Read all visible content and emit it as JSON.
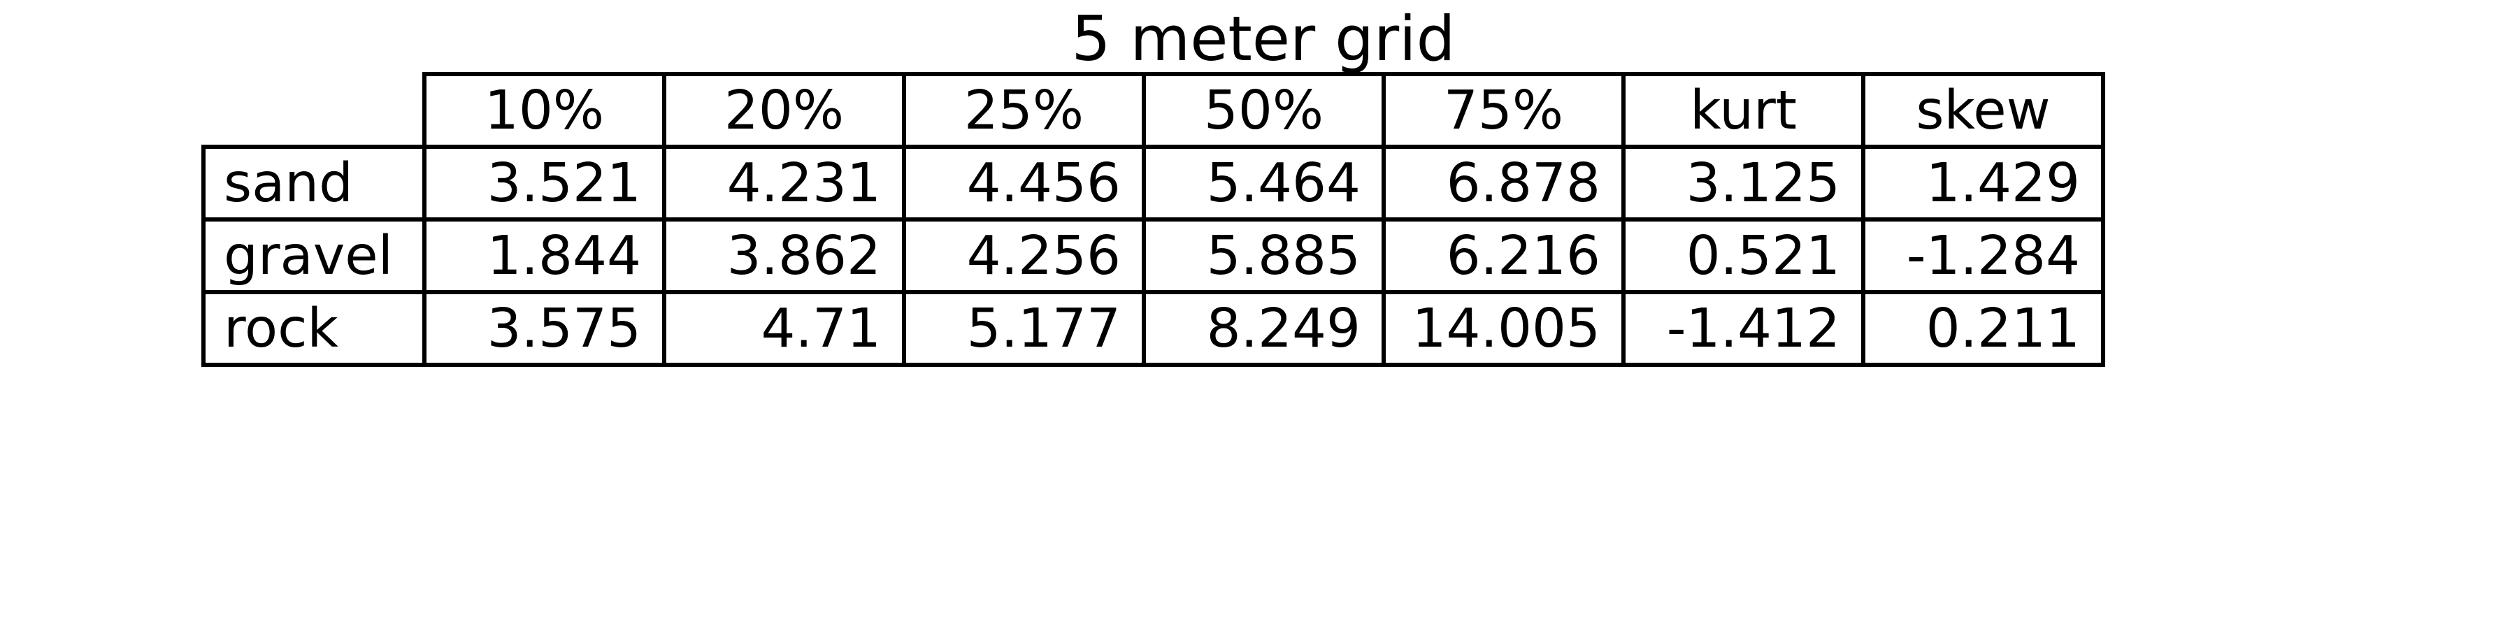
{
  "chart_data": {
    "type": "table",
    "title": "5 meter grid",
    "columns": [
      "10%",
      "20%",
      "25%",
      "50%",
      "75%",
      "kurt",
      "skew"
    ],
    "rows": [
      {
        "label": "sand",
        "values": [
          "3.521",
          "4.231",
          "4.456",
          "5.464",
          "6.878",
          "3.125",
          "1.429"
        ]
      },
      {
        "label": "gravel",
        "values": [
          "1.844",
          "3.862",
          "4.256",
          "5.885",
          "6.216",
          "0.521",
          "-1.284"
        ]
      },
      {
        "label": "rock",
        "values": [
          "3.575",
          "4.71",
          "5.177",
          "8.249",
          "14.005",
          "-1.412",
          "0.211"
        ]
      }
    ]
  }
}
